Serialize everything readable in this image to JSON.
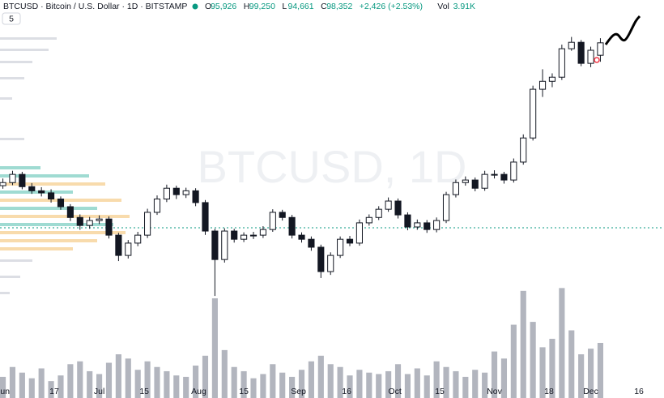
{
  "header": {
    "symbol": "BTCUSD · Bitcoin / U.S. Dollar · 1D · BITSTAMP",
    "ohlc": [
      {
        "label": "O",
        "value": "95,926"
      },
      {
        "label": "H",
        "value": "99,250"
      },
      {
        "label": "L",
        "value": "94,661"
      },
      {
        "label": "C",
        "value": "98,352"
      }
    ],
    "change": "+2,426 (+2.53%)",
    "volume": {
      "label": "Vol",
      "value": "3.91K"
    }
  },
  "indicators_badge": "5",
  "chart_data": {
    "type": "candlestick",
    "watermark": "BTCUSD, 1D",
    "open": [
      70500,
      71100,
      72700,
      70300,
      69500,
      69100,
      67900,
      66400,
      64300,
      62750,
      63700,
      64000,
      60850,
      56900,
      59300,
      60850,
      65300,
      67900,
      70000,
      68750,
      69500,
      67200,
      61650,
      56100,
      61650,
      60050,
      60850,
      60850,
      61950,
      65300,
      64300,
      60850,
      60050,
      58500,
      53750,
      56900,
      60050,
      59300,
      63250,
      64300,
      65900,
      67500,
      64800,
      62450,
      63250,
      61950,
      63700,
      68750,
      71100,
      71600,
      70000,
      72700,
      72700,
      71600,
      75100,
      79800,
      89300,
      90850,
      91650,
      97200,
      98450,
      94350,
      95926
    ],
    "high": [
      71900,
      73400,
      73200,
      71000,
      70200,
      69800,
      68400,
      66900,
      64900,
      64400,
      64700,
      64500,
      61300,
      59900,
      61500,
      66000,
      68600,
      70700,
      70500,
      70100,
      70000,
      67700,
      62100,
      62200,
      62100,
      61400,
      61500,
      62600,
      65900,
      65800,
      64800,
      61400,
      60600,
      59000,
      57500,
      60600,
      60700,
      63900,
      64900,
      66500,
      68200,
      68000,
      65300,
      63900,
      63800,
      64300,
      69300,
      71700,
      72300,
      72100,
      73400,
      73500,
      73200,
      75800,
      80500,
      90000,
      93200,
      92400,
      98000,
      99500,
      98900,
      97600,
      99250
    ],
    "low": [
      69900,
      70600,
      69800,
      68900,
      68400,
      67200,
      65800,
      63600,
      61900,
      62100,
      63000,
      60200,
      55800,
      56300,
      58700,
      60300,
      64800,
      67300,
      67900,
      68100,
      66500,
      60900,
      49000,
      55500,
      59400,
      59500,
      60100,
      60300,
      61500,
      63700,
      60200,
      59400,
      57800,
      52500,
      53100,
      56400,
      58700,
      58800,
      62700,
      63800,
      65400,
      64100,
      61800,
      61900,
      61300,
      61400,
      63200,
      68200,
      70500,
      69400,
      69500,
      71900,
      70900,
      71100,
      74600,
      79300,
      87800,
      89700,
      91100,
      96800,
      93800,
      93600,
      94661
    ],
    "close": [
      71100,
      72700,
      70300,
      69500,
      69100,
      67900,
      66400,
      64300,
      62750,
      63700,
      64000,
      60850,
      56900,
      59300,
      60850,
      65300,
      67900,
      70000,
      68750,
      69500,
      67200,
      61650,
      56100,
      61650,
      60050,
      60850,
      60850,
      61950,
      65300,
      64300,
      60850,
      60050,
      58500,
      53750,
      56900,
      60050,
      59300,
      63250,
      64300,
      65900,
      67500,
      64800,
      62450,
      63250,
      61950,
      63700,
      68750,
      71100,
      71600,
      70000,
      72700,
      72700,
      71600,
      75100,
      79800,
      89300,
      90850,
      91650,
      97200,
      98450,
      94350,
      96900,
      98352
    ],
    "volume": [
      1500,
      2200,
      1800,
      1400,
      2100,
      1200,
      1600,
      2400,
      2600,
      1900,
      1700,
      2500,
      3100,
      2800,
      2000,
      2600,
      2200,
      1900,
      1600,
      1500,
      2300,
      3000,
      7070,
      3400,
      2200,
      1900,
      1400,
      1700,
      2400,
      1800,
      1500,
      2000,
      2600,
      3000,
      2400,
      2200,
      1600,
      2000,
      1800,
      1700,
      1900,
      2400,
      1700,
      2100,
      1600,
      2600,
      2200,
      1900,
      1500,
      2000,
      1800,
      3300,
      2800,
      5200,
      7600,
      5400,
      3600,
      4200,
      7800,
      4800,
      3100,
      3500,
      3910
    ],
    "up_color": "#ffffff",
    "down_color": "#131722",
    "volume_color": "#b2b5be",
    "xlim": [
      -0.3,
      68.6
    ],
    "ylim": [
      29100,
      106700
    ],
    "volume_lim": [
      0,
      8510
    ],
    "xticks": [
      {
        "value": 0,
        "label": "Jun"
      },
      {
        "value": 5.33,
        "label": "17"
      },
      {
        "value": 10,
        "label": "Jul"
      },
      {
        "value": 14.67,
        "label": "15"
      },
      {
        "value": 20.33,
        "label": "Aug"
      },
      {
        "value": 25,
        "label": "15"
      },
      {
        "value": 30.67,
        "label": "Sep"
      },
      {
        "value": 35.67,
        "label": "16"
      },
      {
        "value": 40.67,
        "label": "Oct"
      },
      {
        "value": 45.33,
        "label": "15"
      },
      {
        "value": 51,
        "label": "Nov"
      },
      {
        "value": 56.67,
        "label": "18"
      },
      {
        "value": 61,
        "label": "Dec"
      },
      {
        "value": 66,
        "label": "16"
      }
    ]
  }
}
